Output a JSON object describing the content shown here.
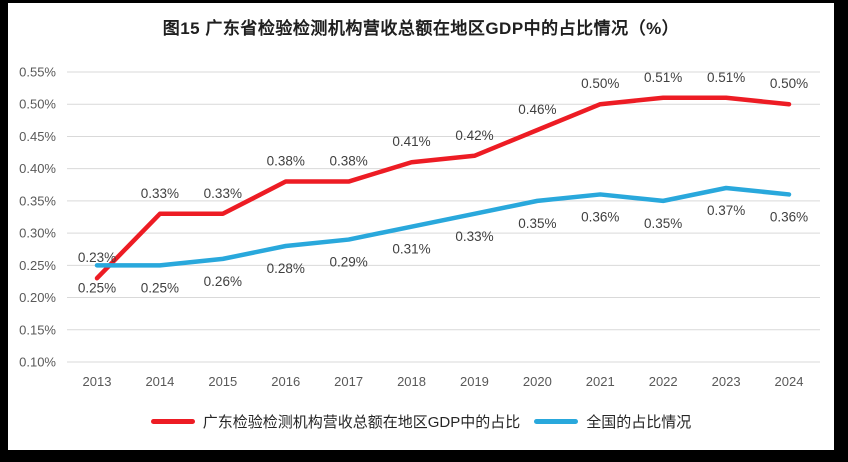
{
  "title": "图15  广东省检验检测机构营收总额在地区GDP中的占比情况（%）",
  "frame": {
    "page_background": "#ffffff",
    "border_color": "#000000"
  },
  "chart_data": {
    "type": "line",
    "title": "图15  广东省检验检测机构营收总额在地区GDP中的占比情况（%）",
    "categories": [
      "2013",
      "2014",
      "2015",
      "2016",
      "2017",
      "2018",
      "2019",
      "2020",
      "2021",
      "2022",
      "2023",
      "2024"
    ],
    "series": [
      {
        "name": "广东检验检测机构营收总额在地区GDP中的占比",
        "color": "#ED1C24",
        "values": [
          0.23,
          0.33,
          0.33,
          0.38,
          0.38,
          0.41,
          0.42,
          0.46,
          0.5,
          0.51,
          0.51,
          0.5
        ],
        "labels": [
          "0.23%",
          "0.33%",
          "0.33%",
          "0.38%",
          "0.38%",
          "0.41%",
          "0.42%",
          "0.46%",
          "0.50%",
          "0.51%",
          "0.51%",
          "0.50%"
        ],
        "label_position": "above"
      },
      {
        "name": "全国的占比情况",
        "color": "#29A8DC",
        "values": [
          0.25,
          0.25,
          0.26,
          0.28,
          0.29,
          0.31,
          0.33,
          0.35,
          0.36,
          0.35,
          0.37,
          0.36
        ],
        "labels": [
          "0.25%",
          "0.25%",
          "0.26%",
          "0.28%",
          "0.29%",
          "0.31%",
          "0.33%",
          "0.35%",
          "0.36%",
          "0.35%",
          "0.37%",
          "0.36%"
        ],
        "label_position": "below"
      }
    ],
    "ylim": [
      0.1,
      0.55
    ],
    "ytick_step": 0.05,
    "yticks": [
      {
        "value": 0.1,
        "label": "0.10%"
      },
      {
        "value": 0.15,
        "label": "0.15%"
      },
      {
        "value": 0.2,
        "label": "0.20%"
      },
      {
        "value": 0.25,
        "label": "0.25%"
      },
      {
        "value": 0.3,
        "label": "0.30%"
      },
      {
        "value": 0.35,
        "label": "0.35%"
      },
      {
        "value": 0.4,
        "label": "0.40%"
      },
      {
        "value": 0.45,
        "label": "0.45%"
      },
      {
        "value": 0.5,
        "label": "0.50%"
      },
      {
        "value": 0.55,
        "label": "0.55%"
      }
    ],
    "grid": "horizontal-only",
    "gridline_color": "#D9D9D9",
    "tick_label_color": "#595959",
    "data_label_color": "#404040",
    "legend_position": "bottom"
  }
}
